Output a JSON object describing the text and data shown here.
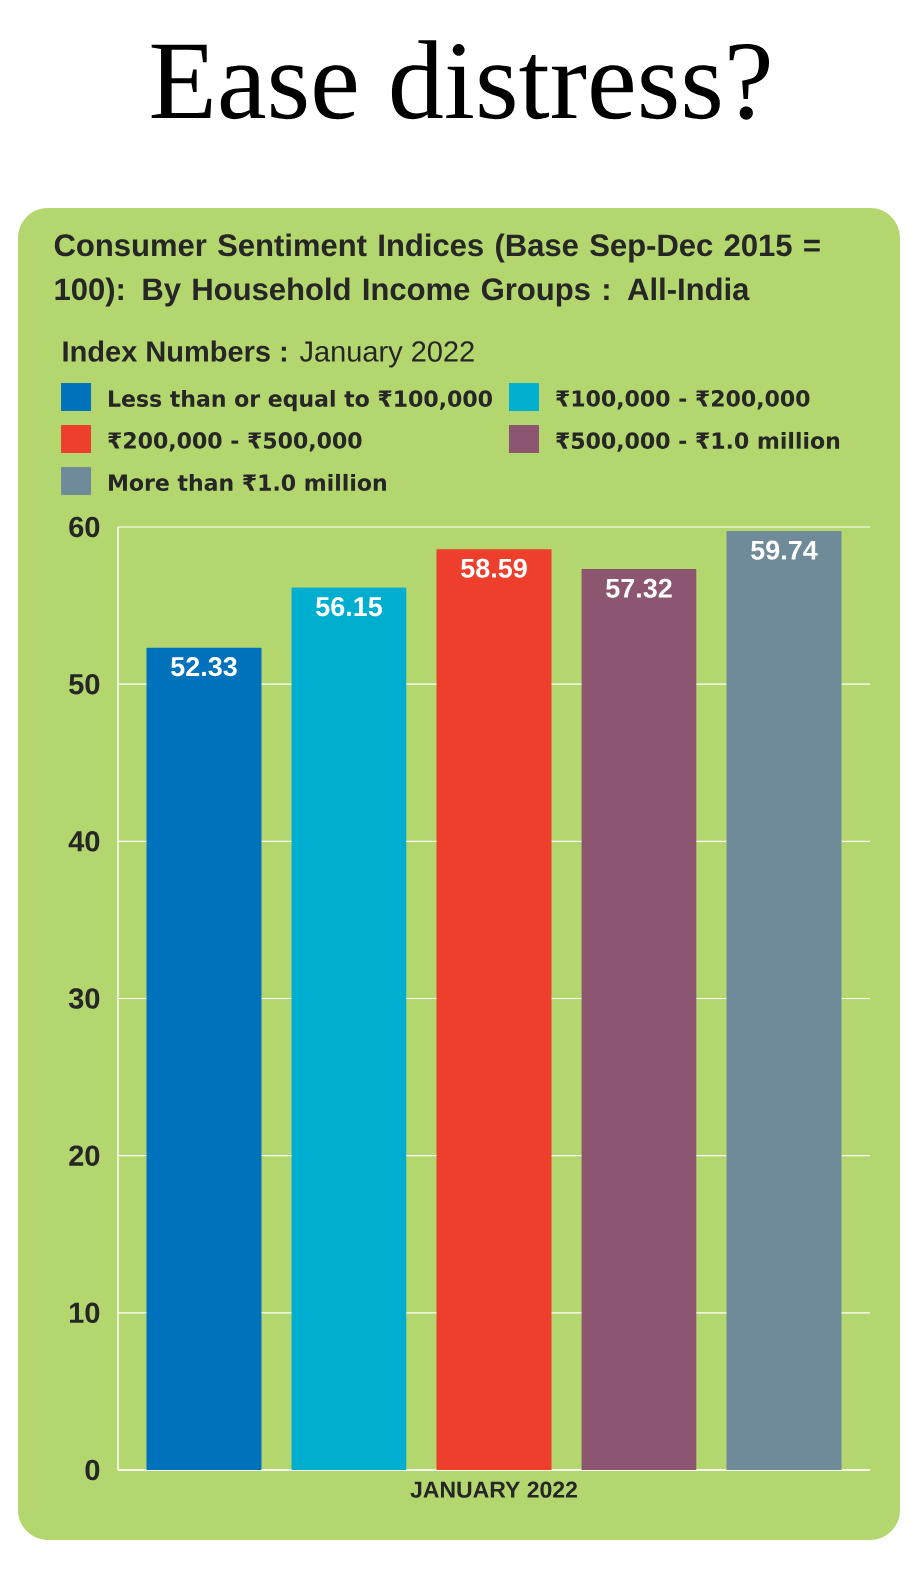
{
  "chart_data": {
    "type": "bar",
    "title": "Ease distress?",
    "subtitle": "Consumer Sentiment Indices (Base Sep-Dec 2015 = 100): By Household Income Groups : All-India",
    "annotations": [
      "**Index Numbers :** January 2022"
    ],
    "categories": [
      "JANUARY 2022"
    ],
    "series": [
      {
        "name": "Less than or equal to ₹100,000",
        "color": "#0072bb",
        "values": [
          52.33
        ]
      },
      {
        "name": "₹100,000 - ₹200,000",
        "color": "#00afcf",
        "values": [
          56.15
        ]
      },
      {
        "name": "₹200,000 - ₹500,000",
        "color": "#ee3f2c",
        "values": [
          58.59
        ]
      },
      {
        "name": "₹500,000 - ₹1.0 million",
        "color": "#8c5670",
        "values": [
          57.32
        ]
      },
      {
        "name": "More than ₹1.0 million",
        "color": "#6f8a98",
        "values": [
          59.74
        ]
      }
    ],
    "ylim": [
      0,
      60
    ],
    "yticks": [
      0,
      10,
      20,
      30,
      40,
      50,
      60
    ],
    "grid": "y",
    "legend": "top",
    "data_labels": true
  }
}
